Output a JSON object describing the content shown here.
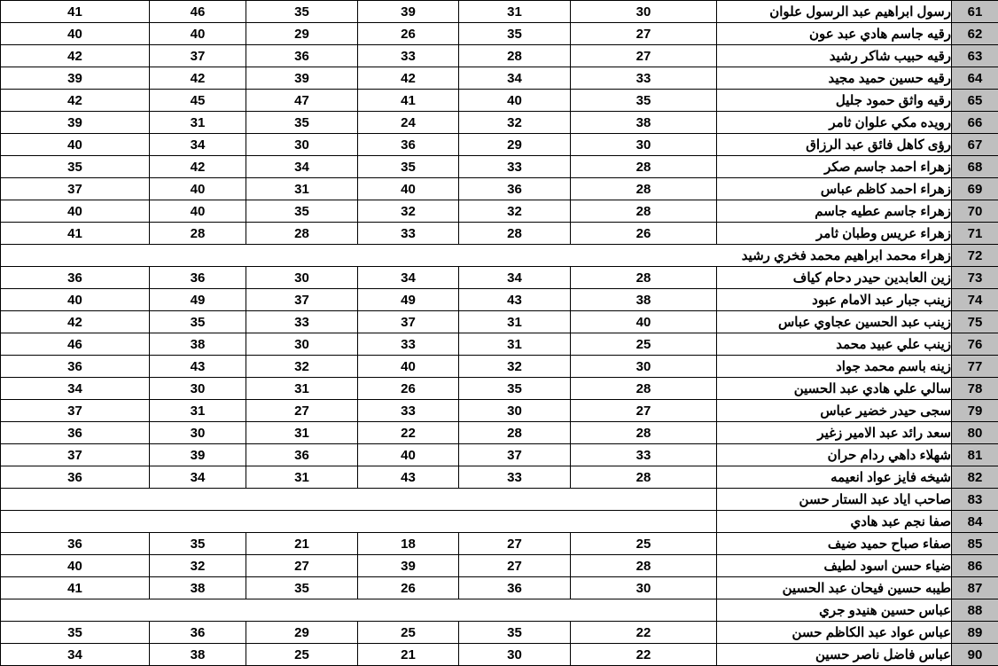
{
  "table": {
    "description": "spreadsheet-grid-of-student-scores",
    "border_color": "#000000",
    "row_header_bg": "#bfbfbf",
    "score_column_count": 6,
    "rows": [
      {
        "num": "61",
        "name": "رسول ابراهيم عبد الرسول علوان",
        "scores": [
          "41",
          "46",
          "35",
          "39",
          "31",
          "30"
        ]
      },
      {
        "num": "62",
        "name": "رقيه جاسم هادي عبد عون",
        "scores": [
          "40",
          "40",
          "29",
          "26",
          "35",
          "27"
        ]
      },
      {
        "num": "63",
        "name": "رقيه حبيب شاكر رشيد",
        "scores": [
          "42",
          "37",
          "36",
          "33",
          "28",
          "27"
        ]
      },
      {
        "num": "64",
        "name": "رقيه حسين حميد مجيد",
        "scores": [
          "39",
          "42",
          "39",
          "42",
          "34",
          "33"
        ]
      },
      {
        "num": "65",
        "name": "رقيه واثق حمود جليل",
        "scores": [
          "42",
          "45",
          "47",
          "41",
          "40",
          "35"
        ]
      },
      {
        "num": "66",
        "name": "رويده مكي علوان ثامر",
        "scores": [
          "39",
          "31",
          "35",
          "24",
          "32",
          "38"
        ]
      },
      {
        "num": "67",
        "name": "رؤى كاهل فائق عبد الرزاق",
        "scores": [
          "40",
          "34",
          "30",
          "36",
          "29",
          "30"
        ]
      },
      {
        "num": "68",
        "name": "زهراء احمد جاسم صكر",
        "scores": [
          "35",
          "42",
          "34",
          "35",
          "33",
          "28"
        ]
      },
      {
        "num": "69",
        "name": "زهراء احمد كاظم عباس",
        "scores": [
          "37",
          "40",
          "31",
          "40",
          "36",
          "28"
        ]
      },
      {
        "num": "70",
        "name": "زهراء جاسم عطيه جاسم",
        "scores": [
          "40",
          "40",
          "35",
          "32",
          "32",
          "28"
        ]
      },
      {
        "num": "71",
        "name": "زهراء عريس وطبان ثامر",
        "scores": [
          "41",
          "28",
          "28",
          "33",
          "28",
          "26"
        ]
      },
      {
        "num": "72",
        "name": "زهراء محمد ابراهيم محمد فخري رشيد",
        "scores": [],
        "name_overflows": true
      },
      {
        "num": "73",
        "name": "زين العابدين حيدر دحام كياف",
        "scores": [
          "36",
          "36",
          "30",
          "34",
          "34",
          "28"
        ]
      },
      {
        "num": "74",
        "name": "زينب جبار عبد الامام عبود",
        "scores": [
          "40",
          "49",
          "37",
          "49",
          "43",
          "38"
        ]
      },
      {
        "num": "75",
        "name": "زينب عبد الحسين عجاوي عباس",
        "scores": [
          "42",
          "35",
          "33",
          "37",
          "31",
          "40"
        ]
      },
      {
        "num": "76",
        "name": "زينب علي عبيد محمد",
        "scores": [
          "46",
          "38",
          "30",
          "33",
          "31",
          "25"
        ]
      },
      {
        "num": "77",
        "name": "زينه باسم محمد جواد",
        "scores": [
          "36",
          "43",
          "32",
          "40",
          "32",
          "30"
        ]
      },
      {
        "num": "78",
        "name": "سالي علي هادي عبد الحسين",
        "scores": [
          "34",
          "30",
          "31",
          "26",
          "35",
          "28"
        ]
      },
      {
        "num": "79",
        "name": "سجى حيدر خضير عباس",
        "scores": [
          "37",
          "31",
          "27",
          "33",
          "30",
          "27"
        ]
      },
      {
        "num": "80",
        "name": "سعد رائد عبد الامير زغير",
        "scores": [
          "36",
          "30",
          "31",
          "22",
          "28",
          "28"
        ]
      },
      {
        "num": "81",
        "name": "شهلاء داهي ردام حران",
        "scores": [
          "37",
          "39",
          "36",
          "40",
          "37",
          "33"
        ]
      },
      {
        "num": "82",
        "name": "شيخه فايز عواد انعيمه",
        "scores": [
          "36",
          "34",
          "31",
          "43",
          "33",
          "28"
        ]
      },
      {
        "num": "83",
        "name": "صاحب اياد عبد الستار حسن",
        "scores": []
      },
      {
        "num": "84",
        "name": "صفا نجم عبد هادي",
        "scores": []
      },
      {
        "num": "85",
        "name": "صفاء صباح حميد ضيف",
        "scores": [
          "36",
          "35",
          "21",
          "18",
          "27",
          "25"
        ]
      },
      {
        "num": "86",
        "name": "ضياء حسن اسود لطيف",
        "scores": [
          "40",
          "32",
          "27",
          "39",
          "27",
          "28"
        ]
      },
      {
        "num": "87",
        "name": "طيبه حسين فيحان عبد الحسين",
        "scores": [
          "41",
          "38",
          "35",
          "26",
          "36",
          "30"
        ]
      },
      {
        "num": "88",
        "name": "عباس حسين هنيدو جري",
        "scores": []
      },
      {
        "num": "89",
        "name": "عباس عواد عبد الكاظم حسن",
        "scores": [
          "35",
          "36",
          "29",
          "25",
          "35",
          "22"
        ]
      },
      {
        "num": "90",
        "name": "عباس فاضل ناصر حسين",
        "scores": [
          "34",
          "38",
          "25",
          "21",
          "30",
          "22"
        ]
      }
    ]
  }
}
